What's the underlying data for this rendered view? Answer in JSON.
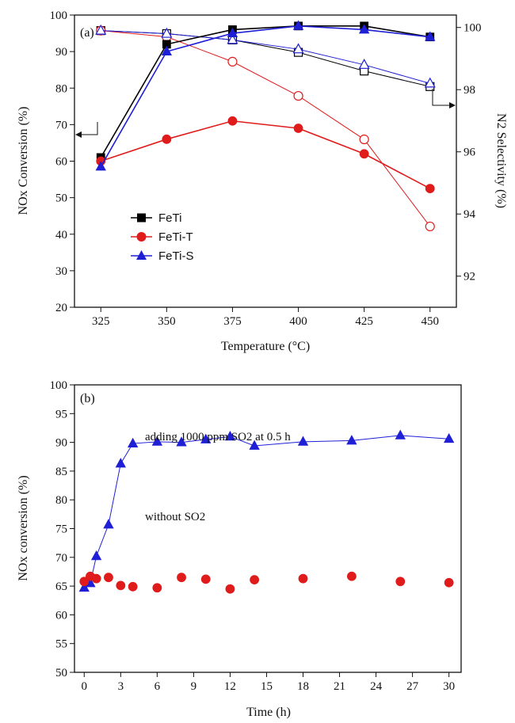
{
  "chart_data": [
    {
      "panel_label": "(a)",
      "type": "line",
      "xlabel": "Temperature (°C)",
      "ylabel_left": "NOx Conversion (%)",
      "ylabel_right": "N2 Selectivity (%)",
      "xlim": [
        315,
        460
      ],
      "ylim_left": [
        20,
        100
      ],
      "ylim_right": [
        91,
        100.4
      ],
      "x_ticks": [
        325,
        350,
        375,
        400,
        425,
        450
      ],
      "y_ticks_left": [
        20,
        30,
        40,
        50,
        60,
        70,
        80,
        90,
        100
      ],
      "y_ticks_right": [
        92,
        94,
        96,
        98,
        100
      ],
      "x": [
        325,
        350,
        375,
        400,
        425,
        450
      ],
      "legend": [
        "FeTi",
        "FeTi-T",
        "FeTi-S"
      ],
      "legend_position": "lower-left",
      "series": [
        {
          "name": "FeTi",
          "axis": "left",
          "color": "#000000",
          "marker": "square",
          "filled": true,
          "values": [
            61,
            92,
            96,
            97,
            97,
            94
          ]
        },
        {
          "name": "FeTi-T",
          "axis": "left",
          "color": "#e01b1b",
          "marker": "circle",
          "filled": true,
          "values": [
            60,
            66,
            71,
            69,
            62,
            52.5
          ]
        },
        {
          "name": "FeTi-S",
          "axis": "left",
          "color": "#1f1fd6",
          "marker": "triangle",
          "filled": true,
          "values": [
            58.5,
            90,
            95,
            97,
            96,
            94
          ]
        },
        {
          "name": "FeTi",
          "axis": "right",
          "color": "#000000",
          "marker": "square",
          "filled": false,
          "values": [
            99.9,
            99.8,
            99.6,
            99.2,
            98.6,
            98.1
          ]
        },
        {
          "name": "FeTi-T",
          "axis": "right",
          "color": "#e01b1b",
          "marker": "circle",
          "filled": false,
          "values": [
            99.9,
            99.7,
            98.9,
            97.8,
            96.4,
            93.6
          ]
        },
        {
          "name": "FeTi-S",
          "axis": "right",
          "color": "#1f1fd6",
          "marker": "triangle",
          "filled": false,
          "values": [
            99.9,
            99.8,
            99.6,
            99.3,
            98.8,
            98.2
          ]
        }
      ]
    },
    {
      "panel_label": "(b)",
      "type": "line",
      "xlabel": "Time (h)",
      "ylabel": "NOx conversion (%)",
      "xlim": [
        -0.8,
        31
      ],
      "ylim": [
        50,
        100
      ],
      "x_ticks": [
        0,
        3,
        6,
        9,
        12,
        15,
        18,
        21,
        24,
        27,
        30
      ],
      "y_ticks": [
        50,
        55,
        60,
        65,
        70,
        75,
        80,
        85,
        90,
        95,
        100
      ],
      "annotations": [
        {
          "text": "adding 1000 ppm SO2  at 0.5 h",
          "series": "with-so2"
        },
        {
          "text": "without SO2",
          "series": "without-so2"
        }
      ],
      "series": [
        {
          "id": "with-so2",
          "color": "#1f1fd6",
          "marker": "triangle",
          "filled": true,
          "x": [
            0,
            0.5,
            1,
            2,
            3,
            4,
            6,
            8,
            10,
            12,
            14,
            18,
            22,
            26,
            30
          ],
          "values": [
            64.7,
            65.5,
            70.2,
            75.7,
            86.3,
            89.8,
            90.1,
            90.0,
            90.5,
            91.0,
            89.4,
            90.1,
            90.3,
            91.2,
            90.6
          ]
        },
        {
          "id": "without-so2",
          "color": "#e01b1b",
          "marker": "circle",
          "filled": true,
          "x": [
            0,
            0.5,
            1,
            2,
            3,
            4,
            6,
            8,
            10,
            12,
            14,
            18,
            22,
            26,
            30
          ],
          "values": [
            65.8,
            66.7,
            66.3,
            66.5,
            65.1,
            64.9,
            64.7,
            66.5,
            66.2,
            64.5,
            66.1,
            66.3,
            66.7,
            65.8,
            65.6
          ]
        }
      ]
    }
  ]
}
